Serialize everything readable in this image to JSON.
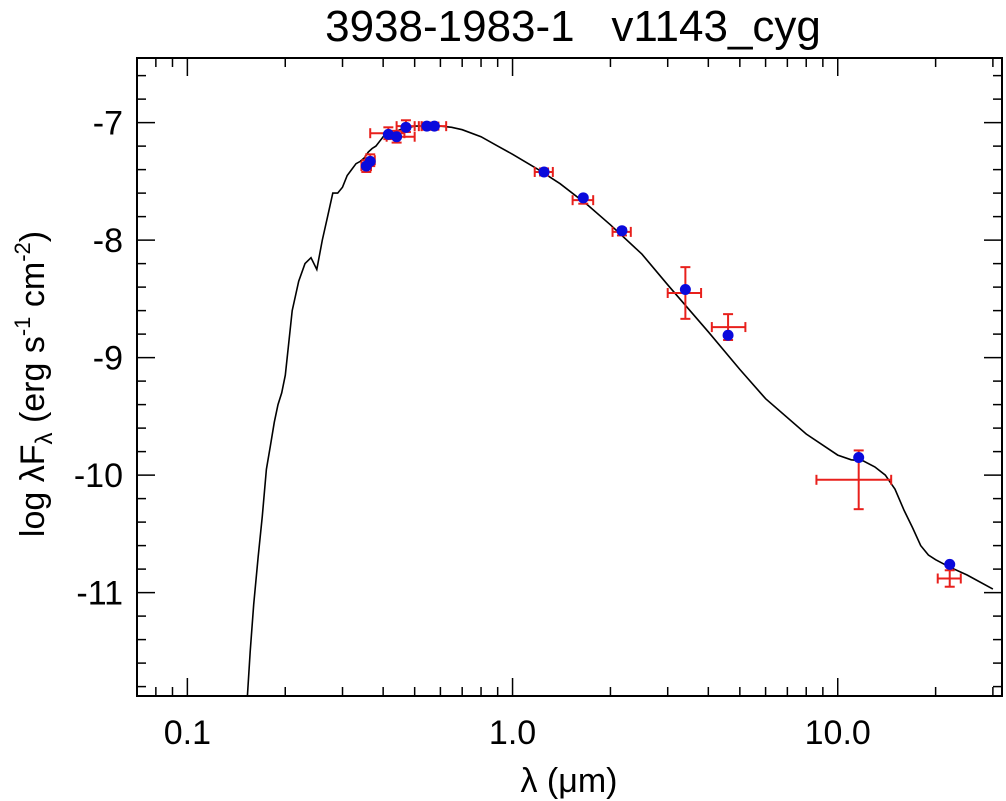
{
  "chart_data": {
    "type": "scatter",
    "title": "3938-1983-1   v1143_cyg",
    "xlabel": "λ (μm)",
    "ylabel": "log λFλ (erg s-1 cm-2)",
    "ylabel_parts": {
      "prefix": "log λF",
      "sub": "λ",
      "mid1": " (erg s",
      "sup1": "-1",
      "mid2": " cm",
      "sup2": "-2",
      "suffix": ")"
    },
    "x_scale": "log",
    "xlim": [
      0.07,
      32
    ],
    "ylim": [
      -11.88,
      -6.45
    ],
    "x_tick_labels": [
      "0.1",
      "1.0",
      "10.0"
    ],
    "x_ticks": [
      0.1,
      1.0,
      10.0
    ],
    "y_tick_labels": [
      "-7",
      "-8",
      "-9",
      "-10",
      "-11"
    ],
    "y_ticks": [
      -7,
      -8,
      -9,
      -10,
      -11
    ],
    "colors": {
      "model": "#000000",
      "errorbar": "#e8201c",
      "point": "#0a0adc"
    },
    "model_series": {
      "name": "SED model",
      "x": [
        0.153,
        0.156,
        0.16,
        0.165,
        0.17,
        0.175,
        0.18,
        0.185,
        0.19,
        0.195,
        0.2,
        0.21,
        0.22,
        0.23,
        0.24,
        0.25,
        0.26,
        0.27,
        0.28,
        0.29,
        0.3,
        0.31,
        0.32,
        0.33,
        0.34,
        0.35,
        0.36,
        0.37,
        0.38,
        0.4,
        0.42,
        0.45,
        0.5,
        0.55,
        0.6,
        0.65,
        0.7,
        0.8,
        0.9,
        1.0,
        1.2,
        1.4,
        1.7,
        2.0,
        2.5,
        3.0,
        4.0,
        5.0,
        6.0,
        8.0,
        10.0,
        11.0,
        12.0,
        13.0,
        14.0,
        15.0,
        16.0,
        17.0,
        18.0,
        19.0,
        20.0,
        22.0,
        25.0,
        30.0
      ],
      "y": [
        -11.88,
        -11.5,
        -11.1,
        -10.7,
        -10.35,
        -9.95,
        -9.75,
        -9.55,
        -9.4,
        -9.3,
        -9.15,
        -8.6,
        -8.35,
        -8.2,
        -8.15,
        -8.25,
        -8.0,
        -7.8,
        -7.6,
        -7.6,
        -7.55,
        -7.45,
        -7.4,
        -7.35,
        -7.33,
        -7.3,
        -7.25,
        -7.22,
        -7.2,
        -7.12,
        -7.1,
        -7.06,
        -7.03,
        -7.03,
        -7.03,
        -7.04,
        -7.06,
        -7.12,
        -7.2,
        -7.27,
        -7.4,
        -7.52,
        -7.7,
        -7.87,
        -8.12,
        -8.38,
        -8.78,
        -9.1,
        -9.35,
        -9.65,
        -9.83,
        -9.87,
        -9.88,
        -9.93,
        -10.0,
        -10.12,
        -10.3,
        -10.45,
        -10.6,
        -10.68,
        -10.72,
        -10.78,
        -10.85,
        -10.97
      ]
    },
    "observed_series": {
      "name": "photometry",
      "points": [
        {
          "x": 0.355,
          "y": -7.37,
          "y_model": -7.37,
          "xerr_lo": 0.012,
          "xerr_hi": 0.012,
          "yerr": 0.05
        },
        {
          "x": 0.365,
          "y": -7.32,
          "y_model": -7.33,
          "xerr_lo": 0.012,
          "xerr_hi": 0.012,
          "yerr": 0.05
        },
        {
          "x": 0.415,
          "y": -7.09,
          "y_model": -7.1,
          "xerr_lo": 0.05,
          "xerr_hi": 0.05,
          "yerr": 0.05
        },
        {
          "x": 0.44,
          "y": -7.12,
          "y_model": -7.12,
          "xerr_lo": 0.03,
          "xerr_hi": 0.06,
          "yerr": 0.05
        },
        {
          "x": 0.47,
          "y": -7.03,
          "y_model": -7.04,
          "xerr_lo": 0.03,
          "xerr_hi": 0.03,
          "yerr": 0.05
        },
        {
          "x": 0.545,
          "y": -7.03,
          "y_model": -7.03,
          "xerr_lo": 0.03,
          "xerr_hi": 0.03,
          "yerr": 0.03
        },
        {
          "x": 0.575,
          "y": -7.03,
          "y_model": -7.03,
          "xerr_lo": 0.05,
          "xerr_hi": 0.05,
          "yerr": 0.03
        },
        {
          "x": 1.25,
          "y": -7.42,
          "y_model": -7.42,
          "xerr_lo": 0.08,
          "xerr_hi": 0.08,
          "yerr": 0.03
        },
        {
          "x": 1.65,
          "y": -7.66,
          "y_model": -7.64,
          "xerr_lo": 0.12,
          "xerr_hi": 0.12,
          "yerr": 0.03
        },
        {
          "x": 2.17,
          "y": -7.93,
          "y_model": -7.92,
          "xerr_lo": 0.14,
          "xerr_hi": 0.14,
          "yerr": 0.03
        },
        {
          "x": 3.4,
          "y": -8.45,
          "y_model": -8.42,
          "xerr_lo": 0.4,
          "xerr_hi": 0.4,
          "yerr": 0.22
        },
        {
          "x": 4.6,
          "y": -8.74,
          "y_model": -8.81,
          "xerr_lo": 0.5,
          "xerr_hi": 0.6,
          "yerr": 0.11
        },
        {
          "x": 11.6,
          "y": -10.04,
          "y_model": -9.85,
          "xerr_lo": 3.0,
          "xerr_hi": 3.0,
          "yerr": 0.25
        },
        {
          "x": 22.1,
          "y": -10.88,
          "y_model": -10.76,
          "xerr_lo": 1.8,
          "xerr_hi": 1.8,
          "yerr": 0.07
        }
      ]
    }
  }
}
